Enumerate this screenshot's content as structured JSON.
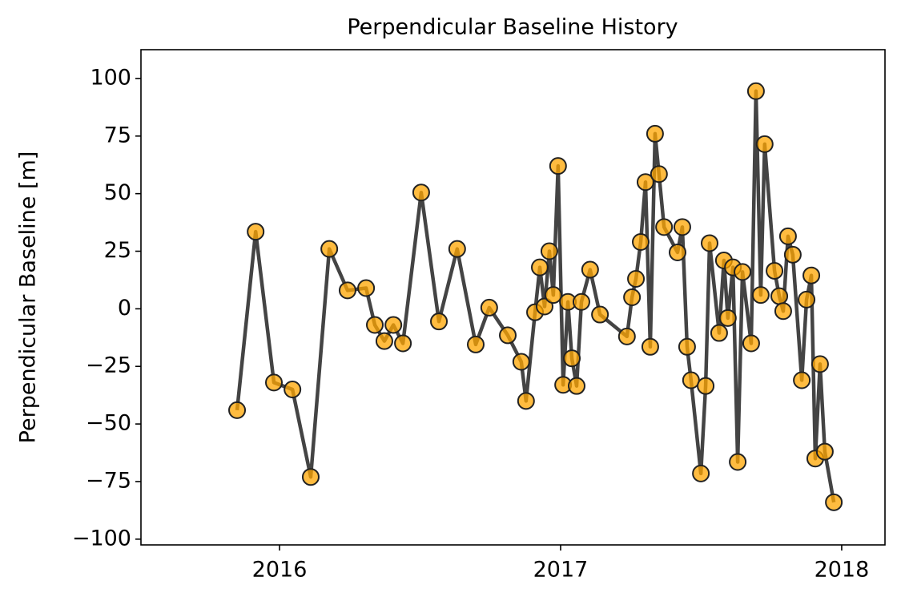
{
  "chart_data": {
    "type": "line",
    "title": "Perpendicular Baseline History",
    "y_label": "Perpendicular Baseline [m]",
    "line_color": "#444444",
    "marker_color": "#ffa500",
    "x": [
      2015.849,
      2015.915,
      2015.98,
      2016.046,
      2016.111,
      2016.177,
      2016.242,
      2016.308,
      2016.339,
      2016.373,
      2016.405,
      2016.439,
      2016.504,
      2016.567,
      2016.632,
      2016.698,
      2016.746,
      2016.812,
      2016.86,
      2016.877,
      2016.909,
      2016.926,
      2016.943,
      2016.96,
      2016.974,
      2016.991,
      2017.009,
      2017.026,
      2017.04,
      2017.057,
      2017.074,
      2017.105,
      2017.14,
      2017.236,
      2017.254,
      2017.268,
      2017.285,
      2017.302,
      2017.319,
      2017.336,
      2017.35,
      2017.368,
      2017.416,
      2017.433,
      2017.45,
      2017.464,
      2017.499,
      2017.516,
      2017.53,
      2017.564,
      2017.581,
      2017.595,
      2017.613,
      2017.63,
      2017.647,
      2017.678,
      2017.695,
      2017.712,
      2017.726,
      2017.761,
      2017.778,
      2017.792,
      2017.809,
      2017.826,
      2017.858,
      2017.875,
      2017.892,
      2017.906,
      2017.923,
      2017.94,
      2017.972
    ],
    "values": [
      -44,
      33.5,
      -32,
      -35,
      -73,
      26,
      8,
      9,
      -7,
      -14,
      -7,
      -15,
      50.5,
      -5.5,
      26,
      -15.5,
      0.5,
      -11.5,
      -23,
      -40,
      -1.5,
      18,
      1,
      25,
      6,
      62,
      -33,
      3,
      -21.5,
      -33.5,
      3,
      17,
      -2.5,
      -12,
      5,
      13,
      29,
      55,
      -16.5,
      76,
      58.5,
      35.5,
      24.5,
      35.5,
      -16.5,
      -31,
      -71.5,
      -33.5,
      28.5,
      -10.5,
      21,
      -4,
      18,
      -66.5,
      16,
      -15,
      94.5,
      6,
      71.5,
      16.5,
      5.5,
      -1,
      31.5,
      23.5,
      -31,
      4,
      14.5,
      -65,
      -24,
      -62,
      -84
    ],
    "xlim": [
      2015.507,
      2018.154
    ],
    "xticks": [
      2016,
      2017,
      2018
    ],
    "ylim": [
      -102.5,
      112.5
    ],
    "yticks": [
      {
        "value": -100,
        "label": "−100"
      },
      {
        "value": -75,
        "label": "−75"
      },
      {
        "value": -50,
        "label": "−50"
      },
      {
        "value": -25,
        "label": "−25"
      },
      0,
      25,
      50,
      75,
      100
    ]
  }
}
